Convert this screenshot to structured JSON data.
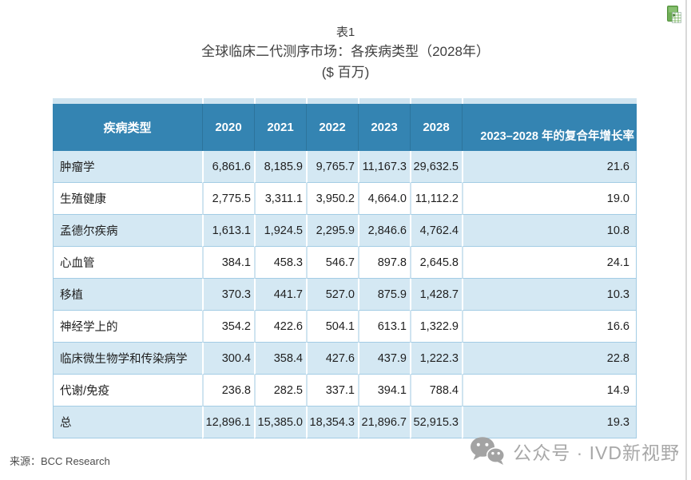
{
  "title": {
    "line1": "表1",
    "line2": "全球临床二代测序市场：各疾病类型（2028年）",
    "line3": "($ 百万)"
  },
  "table": {
    "columns": [
      "疾病类型",
      "2020",
      "2021",
      "2022",
      "2023",
      "2028",
      "2023–2028 年的复合年增长率"
    ],
    "rows": [
      [
        "肿瘤学",
        "6,861.6",
        "8,185.9",
        "9,765.7",
        "11,167.3",
        "29,632.5",
        "21.6"
      ],
      [
        "生殖健康",
        "2,775.5",
        "3,311.1",
        "3,950.2",
        "4,664.0",
        "11,112.2",
        "19.0"
      ],
      [
        "孟德尔疾病",
        "1,613.1",
        "1,924.5",
        "2,295.9",
        "2,846.6",
        "4,762.4",
        "10.8"
      ],
      [
        "心血管",
        "384.1",
        "458.3",
        "546.7",
        "897.8",
        "2,645.8",
        "24.1"
      ],
      [
        "移植",
        "370.3",
        "441.7",
        "527.0",
        "875.9",
        "1,428.7",
        "10.3"
      ],
      [
        "神经学上的",
        "354.2",
        "422.6",
        "504.1",
        "613.1",
        "1,322.9",
        "16.6"
      ],
      [
        "临床微生物学和传染病学",
        "300.4",
        "358.4",
        "427.6",
        "437.9",
        "1,222.3",
        "22.8"
      ],
      [
        "代谢/免疫",
        "236.8",
        "282.5",
        "337.1",
        "394.1",
        "788.4",
        "14.9"
      ],
      [
        "总",
        "12,896.1",
        "15,385.0",
        "18,354.3",
        "21,896.7",
        "52,915.3",
        "19.3"
      ]
    ]
  },
  "footer": {
    "source": "来源：BCC Research",
    "watermark_text": "公众号 · IVD新视野"
  },
  "icons": {
    "top_right": "excel-file-icon",
    "watermark": "wechat-icon"
  },
  "colors": {
    "header_bg": "#3484b2",
    "row_tint": "#d4e8f3",
    "border_blue": "#a3cce4",
    "watermark_gray": "#a8a8a8",
    "excel_green": "#6fae56"
  }
}
